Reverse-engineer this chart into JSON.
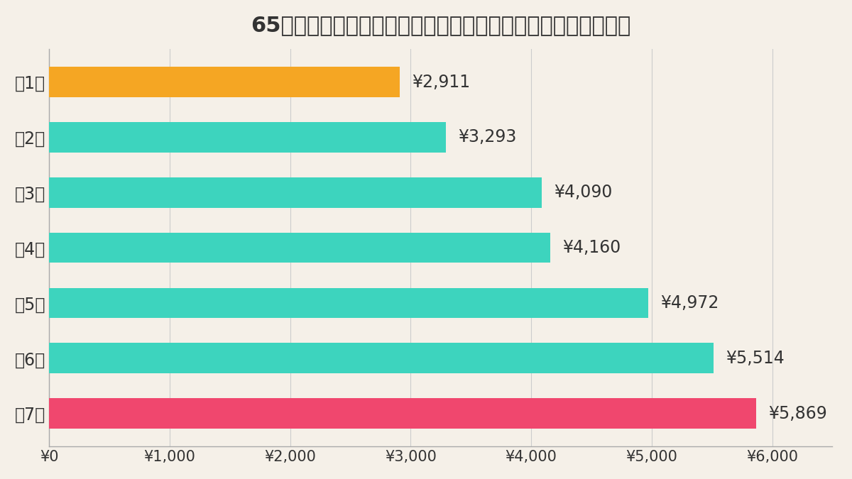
{
  "title": "65歳以上が負担する保険料の基準額（月額）の全国平均の推移",
  "categories": [
    "第1期",
    "第2期",
    "第3期",
    "第4期",
    "第5期",
    "第6期",
    "第7期"
  ],
  "values": [
    2911,
    3293,
    4090,
    4160,
    4972,
    5514,
    5869
  ],
  "bar_colors": [
    "#F5A623",
    "#3DD4BE",
    "#3DD4BE",
    "#3DD4BE",
    "#3DD4BE",
    "#3DD4BE",
    "#F0476E"
  ],
  "labels": [
    "¥2,911",
    "¥3,293",
    "¥4,090",
    "¥4,160",
    "¥4,972",
    "¥5,514",
    "¥5,869"
  ],
  "background_color": "#F5F0E8",
  "title_fontsize": 22,
  "label_fontsize": 17,
  "tick_fontsize": 15,
  "category_fontsize": 17,
  "xlim": [
    0,
    6500
  ],
  "xticks": [
    0,
    1000,
    2000,
    3000,
    4000,
    5000,
    6000
  ],
  "xtick_labels": [
    "¥0",
    "¥1,000",
    "¥2,000",
    "¥3,000",
    "¥4,000",
    "¥5,000",
    "¥6,000"
  ],
  "bar_height": 0.55,
  "text_color": "#333333",
  "spine_color": "#AAAAAA",
  "grid_color": "#CCCCCC"
}
